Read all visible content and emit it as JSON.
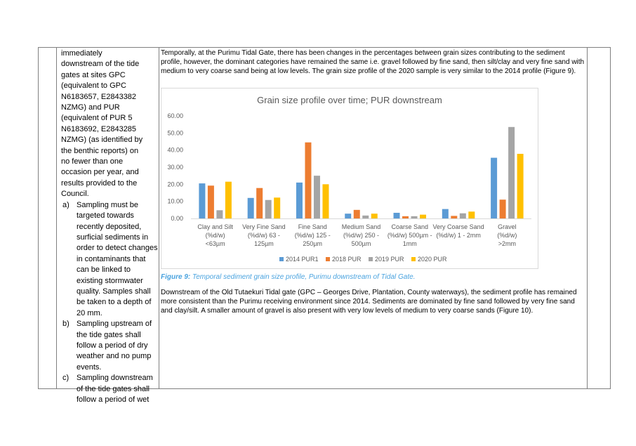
{
  "left": {
    "intro": "immediately downstream of the tide gates at sites GPC (equivalent to GPC N6183657, E2843382 NZMG) and PUR (equivalent of PUR 5 N6183692, E2843285 NZMG) (as identified by the benthic reports) on no fewer than one occasion per year, and results provided to the Council.",
    "items": [
      {
        "marker": "a)",
        "text": "Sampling must be targeted towards recently deposited, surficial sediments in order to detect changes in contaminants that can be linked to existing stormwater quality. Samples shall be taken to a depth of 20 mm."
      },
      {
        "marker": "b)",
        "text": "Sampling upstream of the tide gates shall follow a period of dry weather and no pump events."
      },
      {
        "marker": "c)",
        "text": "Sampling downstream of the tide gates shall follow a period of wet"
      }
    ]
  },
  "main": {
    "para1": "Temporally, at the Purimu Tidal Gate, there has been changes in the percentages between grain sizes contributing to the sediment profile, however, the dominant categories have remained the same i.e. gravel followed by fine sand, then silt/clay and very fine sand with medium to very coarse sand being at low levels.  The grain size profile of the 2020 sample is very similar to the 2014 profile (Figure 9).",
    "caption_label": "Figure 9:",
    "caption_text": " Temporal sediment grain size profile, Purimu downstream of Tidal Gate.",
    "para2": "Downstream of the Old Tutaekuri Tidal gate (GPC – Georges Drive, Plantation, County waterways), the sediment profile has remained more consistent than the Purimu receiving environment since 2014. Sediments are dominated by fine sand followed by very fine sand and clay/silt. A smaller amount of gravel is also present with very low levels of medium to very coarse sands (Figure 10)."
  },
  "chart_data": {
    "type": "bar",
    "title": "Grain size profile over time; PUR  downstream",
    "categories": [
      [
        "Clay and Silt",
        "(%d/w)",
        "<63µm"
      ],
      [
        "Very Fine Sand",
        "(%d/w) 63 -",
        "125µm"
      ],
      [
        "Fine Sand",
        "(%d/w) 125 -",
        "250µm"
      ],
      [
        "Medium Sand",
        "(%d/w) 250 -",
        "500µm"
      ],
      [
        "Coarse Sand",
        "(%d/w) 500µm -",
        "1mm"
      ],
      [
        "Very Coarse Sand",
        "(%d/w) 1 - 2mm",
        ""
      ],
      [
        "Gravel",
        "(%d/w)",
        ">2mm"
      ]
    ],
    "series": [
      {
        "name": "2014 PUR1",
        "color": "#5b9bd5",
        "values": [
          20.5,
          12.0,
          21.0,
          2.8,
          3.3,
          5.5,
          35.5
        ]
      },
      {
        "name": "2018 PUR",
        "color": "#ed7d31",
        "values": [
          19.2,
          17.8,
          44.5,
          5.0,
          1.3,
          1.5,
          11.0
        ]
      },
      {
        "name": "2019 PUR",
        "color": "#a5a5a5",
        "values": [
          4.8,
          10.8,
          25.0,
          1.7,
          1.3,
          3.0,
          53.5
        ]
      },
      {
        "name": "2020 PUR",
        "color": "#ffc000",
        "values": [
          21.5,
          12.2,
          20.0,
          2.8,
          2.2,
          4.0,
          37.8
        ]
      }
    ],
    "yticks": [
      "0.00",
      "10.00",
      "20.00",
      "30.00",
      "40.00",
      "50.00",
      "60.00"
    ],
    "ylim": [
      0,
      60
    ],
    "grid": false,
    "legend_position": "bottom"
  }
}
